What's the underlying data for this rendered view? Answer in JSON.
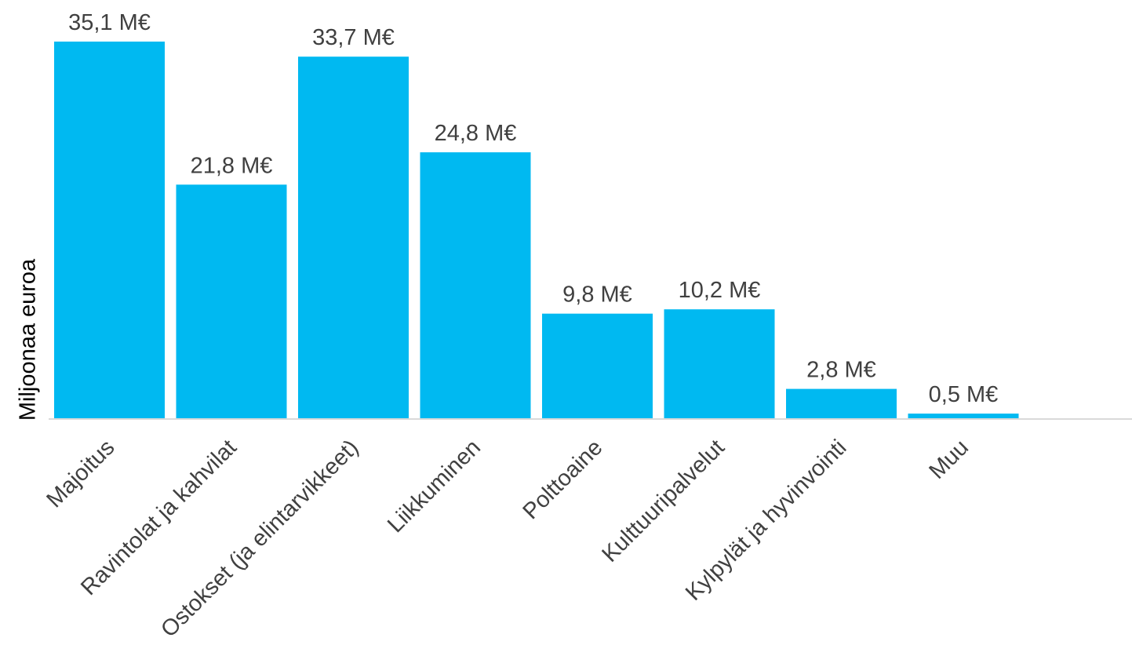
{
  "chart_data": {
    "type": "bar",
    "title": "",
    "xlabel": "",
    "ylabel": "Miljoonaa euroa",
    "categories": [
      "Majoitus",
      "Ravintolat ja kahvilat",
      "Ostokset (ja elintarvikkeet)",
      "Liikkuminen",
      "Polttoaine",
      "Kulttuuripalvelut",
      "Kylpylät ja hyvinvointi",
      "Muu"
    ],
    "values": [
      35.1,
      21.8,
      33.7,
      24.8,
      9.8,
      10.2,
      2.8,
      0.5
    ],
    "data_labels": [
      "35,1 M€",
      "21,8 M€",
      "33,7 M€",
      "24,8 M€",
      "9,8 M€",
      "10,2 M€",
      "2,8 M€",
      "0,5 M€"
    ],
    "ylim": [
      0,
      35.1
    ],
    "grid": false,
    "legend": "none",
    "bar_color": "#00B9F1",
    "axis_color": "#D9D9D9",
    "label_color": "#404040"
  }
}
